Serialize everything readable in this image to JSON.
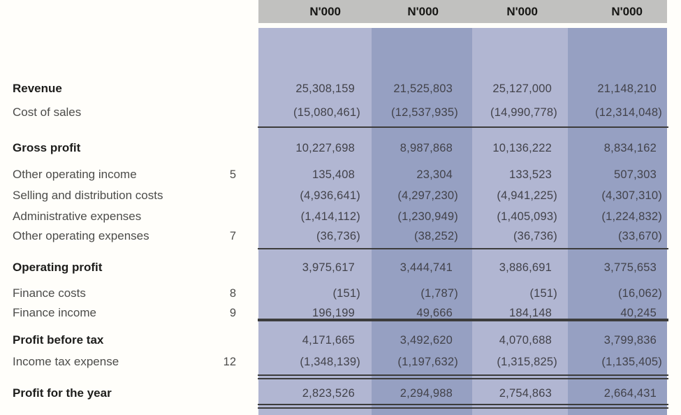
{
  "document": {
    "type": "income-statement-table",
    "unit_labels": [
      "N'000",
      "N'000",
      "N'000",
      "N'000"
    ]
  },
  "colors": {
    "background": "#fffefa",
    "header_bar": "#c1c1bf",
    "column_light": "#b1b6d2",
    "column_dark": "#96a0c2",
    "rule": "#3c3c3c",
    "bold_label_text": "#1d1d1b",
    "label_text": "#4c4c4a",
    "value_text": "#42424a"
  },
  "chart_data": {
    "type": "table",
    "columns": [
      "N'000",
      "N'000",
      "N'000",
      "N'000"
    ],
    "rows": [
      {
        "label": "Revenue",
        "bold": true,
        "note": "",
        "values": [
          "25,308,159",
          "21,525,803",
          "25,127,000",
          "21,148,210"
        ]
      },
      {
        "label": "Cost of sales",
        "bold": false,
        "note": "",
        "values": [
          "(15,080,461)",
          "(12,537,935)",
          "(14,990,778)",
          "(12,314,048)"
        ]
      },
      {
        "label": "Gross profit",
        "bold": true,
        "note": "",
        "values": [
          "10,227,698",
          "8,987,868",
          "10,136,222",
          "8,834,162"
        ]
      },
      {
        "label": "Other operating income",
        "bold": false,
        "note": "5",
        "values": [
          "135,408",
          "23,304",
          "133,523",
          "507,303"
        ]
      },
      {
        "label": "Selling and distribution costs",
        "bold": false,
        "note": "",
        "values": [
          "(4,936,641)",
          "(4,297,230)",
          "(4,941,225)",
          "(4,307,310)"
        ]
      },
      {
        "label": "Administrative expenses",
        "bold": false,
        "note": "",
        "values": [
          "(1,414,112)",
          "(1,230,949)",
          "(1,405,093)",
          "(1,224,832)"
        ]
      },
      {
        "label": "Other operating expenses",
        "bold": false,
        "note": "7",
        "values": [
          "(36,736)",
          "(38,252)",
          "(36,736)",
          "(33,670)"
        ]
      },
      {
        "label": "Operating profit",
        "bold": true,
        "note": "",
        "values": [
          "3,975,617",
          "3,444,741",
          "3,886,691",
          "3,775,653"
        ]
      },
      {
        "label": "Finance costs",
        "bold": false,
        "note": "8",
        "values": [
          "(151)",
          "(1,787)",
          "(151)",
          "(16,062)"
        ]
      },
      {
        "label": "Finance income",
        "bold": false,
        "note": "9",
        "values": [
          "196,199",
          "49,666",
          "184,148",
          "40,245"
        ]
      },
      {
        "label": "Profit before tax",
        "bold": true,
        "note": "",
        "values": [
          "4,171,665",
          "3,492,620",
          "4,070,688",
          "3,799,836"
        ]
      },
      {
        "label": "Income tax expense",
        "bold": false,
        "note": "12",
        "values": [
          "(1,348,139)",
          "(1,197,632)",
          "(1,315,825)",
          "(1,135,405)"
        ]
      },
      {
        "label": "Profit for the year",
        "bold": true,
        "note": "",
        "values": [
          "2,823,526",
          "2,294,988",
          "2,754,863",
          "2,664,431"
        ]
      }
    ]
  }
}
